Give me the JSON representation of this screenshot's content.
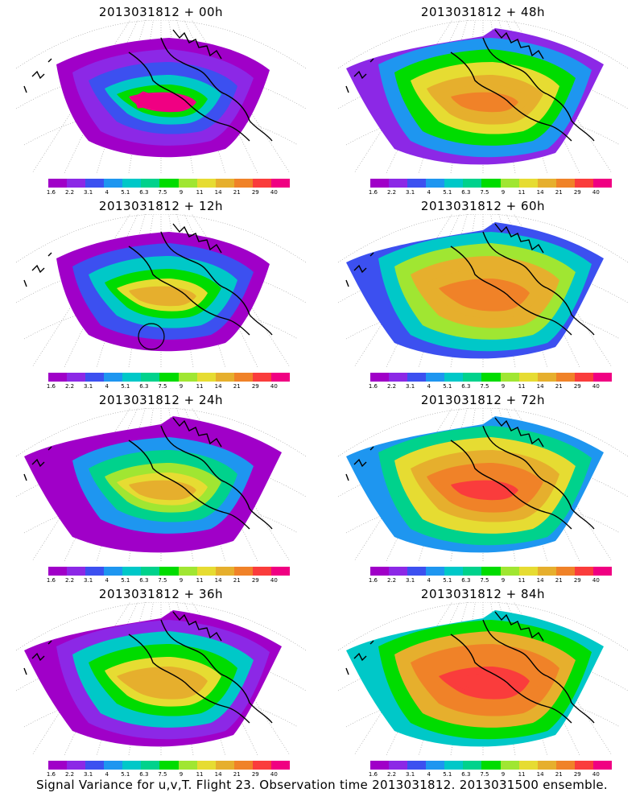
{
  "footer": "Signal Variance for u,v,T. Flight 23. Observation time 2013031812. 2013031500 ensemble.",
  "colorbar": {
    "labels": [
      "1.6",
      "2.2",
      "3.1",
      "4",
      "5.1",
      "6.3",
      "7.5",
      "9",
      "11",
      "14",
      "21",
      "29",
      "40"
    ],
    "colors": [
      "#a000c8",
      "#8c28e6",
      "#3c50f0",
      "#1e96f0",
      "#00c8c8",
      "#00d28c",
      "#00dc00",
      "#a0e632",
      "#e6dc32",
      "#e6af2d",
      "#f08228",
      "#fa3c3c",
      "#f00082"
    ]
  },
  "panels": [
    {
      "title": "2013031812 + 00h",
      "level": 0
    },
    {
      "title": "2013031812 + 48h",
      "level": 4
    },
    {
      "title": "2013031812 + 12h",
      "level": 1
    },
    {
      "title": "2013031812 + 60h",
      "level": 5
    },
    {
      "title": "2013031812 + 24h",
      "level": 2
    },
    {
      "title": "2013031812 + 72h",
      "level": 6
    },
    {
      "title": "2013031812 + 36h",
      "level": 3
    },
    {
      "title": "2013031812 + 84h",
      "level": 7
    }
  ]
}
